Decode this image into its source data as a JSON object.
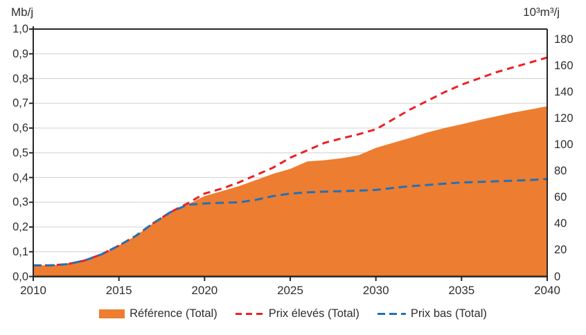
{
  "figure": {
    "background": "#ffffff"
  },
  "chart_data": {
    "type": "area",
    "title": "",
    "grid": "horizontal",
    "legend_position": "bottom",
    "x": [
      2010,
      2011,
      2012,
      2013,
      2014,
      2015,
      2016,
      2017,
      2018,
      2019,
      2020,
      2021,
      2022,
      2023,
      2024,
      2025,
      2026,
      2027,
      2028,
      2029,
      2030,
      2031,
      2032,
      2033,
      2034,
      2035,
      2036,
      2037,
      2038,
      2039,
      2040
    ],
    "series": [
      {
        "name": "Référence (Total)",
        "type": "area",
        "color": "#ed7d31",
        "values": [
          0.045,
          0.045,
          0.05,
          0.065,
          0.09,
          0.125,
          0.165,
          0.215,
          0.26,
          0.29,
          0.325,
          0.345,
          0.365,
          0.39,
          0.415,
          0.435,
          0.465,
          0.47,
          0.478,
          0.49,
          0.52,
          0.54,
          0.56,
          0.582,
          0.6,
          0.615,
          0.632,
          0.647,
          0.662,
          0.675,
          0.688
        ]
      },
      {
        "name": "Prix élevés (Total)",
        "type": "line",
        "style": "dashed",
        "color": "#ed1f24",
        "values": [
          0.045,
          0.045,
          0.05,
          0.065,
          0.09,
          0.125,
          0.165,
          0.215,
          0.26,
          0.295,
          0.335,
          0.355,
          0.38,
          0.41,
          0.44,
          0.48,
          0.51,
          0.54,
          0.558,
          0.575,
          0.595,
          0.635,
          0.675,
          0.71,
          0.745,
          0.775,
          0.8,
          0.825,
          0.845,
          0.865,
          0.885
        ]
      },
      {
        "name": "Prix bas (Total)",
        "type": "line",
        "style": "dashed",
        "color": "#2271b8",
        "values": [
          0.045,
          0.045,
          0.05,
          0.065,
          0.09,
          0.125,
          0.165,
          0.215,
          0.26,
          0.29,
          0.295,
          0.298,
          0.3,
          0.31,
          0.325,
          0.335,
          0.34,
          0.343,
          0.345,
          0.347,
          0.35,
          0.358,
          0.365,
          0.37,
          0.375,
          0.38,
          0.382,
          0.385,
          0.387,
          0.39,
          0.394
        ]
      }
    ],
    "left_axis": {
      "title": "Mb/j",
      "range": [
        0,
        1
      ],
      "tick_values": [
        0,
        0.1,
        0.2,
        0.3,
        0.4,
        0.5,
        0.6,
        0.7,
        0.8,
        0.9,
        1.0
      ],
      "tick_labels": [
        "0,0",
        "0,1",
        "0,2",
        "0,3",
        "0,4",
        "0,5",
        "0,6",
        "0,7",
        "0,8",
        "0,9",
        "1,0"
      ]
    },
    "right_axis": {
      "title": "10³m³/j",
      "tick_values": [
        0,
        20,
        40,
        60,
        80,
        100,
        120,
        140,
        160,
        180
      ],
      "tick_labels": [
        "0",
        "20",
        "40",
        "60",
        "80",
        "100",
        "120",
        "140",
        "160",
        "180"
      ],
      "max_at_plot_top": 188
    },
    "x_axis": {
      "range": [
        2010,
        2040
      ],
      "tick_values": [
        2010,
        2015,
        2020,
        2025,
        2030,
        2035,
        2040
      ],
      "tick_labels": [
        "2010",
        "2015",
        "2020",
        "2025",
        "2030",
        "2035",
        "2040"
      ]
    },
    "colors": {
      "grid": "#d9d9d9",
      "axis": "#262626",
      "text": "#2e2e2e"
    }
  }
}
